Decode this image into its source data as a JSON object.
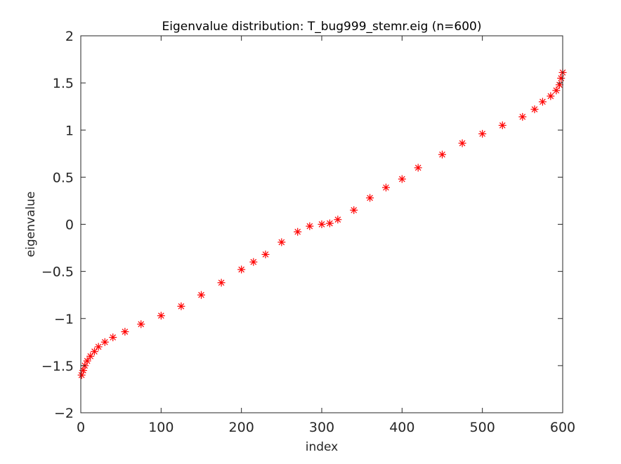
{
  "chart_data": {
    "type": "scatter",
    "title": "Eigenvalue distribution: T_bug999_stemr.eig (n=600)",
    "xlabel": "index",
    "ylabel": "eigenvalue",
    "xlim": [
      0,
      600
    ],
    "ylim": [
      -2,
      2
    ],
    "xticks": [
      0,
      100,
      200,
      300,
      400,
      500,
      600
    ],
    "yticks": [
      -2,
      -1.5,
      -1,
      -0.5,
      0,
      0.5,
      1,
      1.5,
      2
    ],
    "xtick_labels": [
      "0",
      "100",
      "200",
      "300",
      "400",
      "500",
      "600"
    ],
    "ytick_labels": [
      "−2",
      "−1.5",
      "−1",
      "−0.5",
      "0",
      "0.5",
      "1",
      "1.5",
      "2"
    ],
    "grid": false,
    "marker": "asterisk",
    "marker_color": "#ff0000",
    "series": [
      {
        "x": [
          1,
          3,
          5,
          8,
          12,
          17,
          22,
          30,
          40,
          55,
          75,
          100,
          125,
          150,
          175,
          200,
          215,
          230,
          250,
          270,
          285,
          300,
          310,
          320,
          340,
          360,
          380,
          400,
          420,
          450,
          475,
          500,
          525,
          550,
          565,
          575,
          585,
          592,
          596,
          598,
          600
        ],
        "y": [
          -1.6,
          -1.55,
          -1.5,
          -1.45,
          -1.4,
          -1.35,
          -1.3,
          -1.25,
          -1.2,
          -1.14,
          -1.06,
          -0.97,
          -0.87,
          -0.75,
          -0.62,
          -0.48,
          -0.4,
          -0.32,
          -0.19,
          -0.08,
          -0.02,
          0.0,
          0.01,
          0.05,
          0.15,
          0.28,
          0.39,
          0.48,
          0.6,
          0.74,
          0.86,
          0.96,
          1.05,
          1.14,
          1.22,
          1.3,
          1.36,
          1.42,
          1.48,
          1.55,
          1.61
        ]
      }
    ]
  }
}
